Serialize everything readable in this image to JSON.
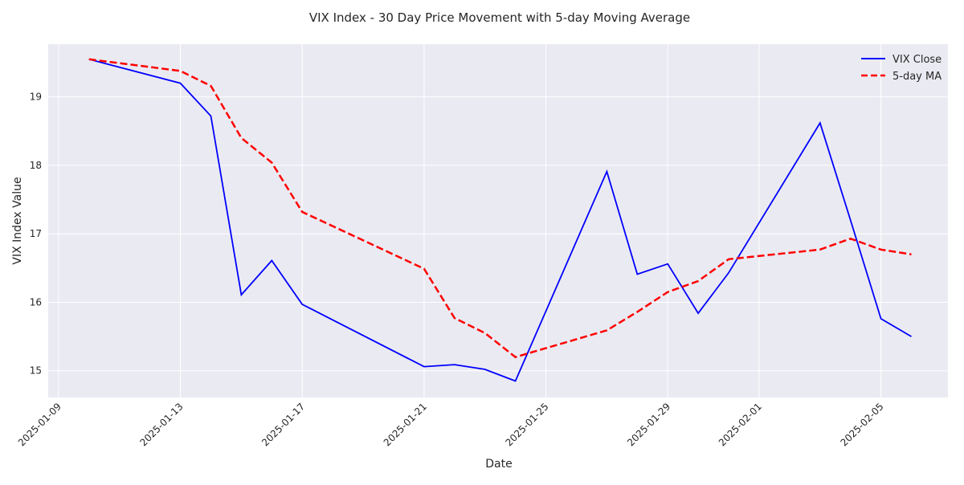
{
  "chart_data": {
    "type": "line",
    "title": "VIX Index - 30 Day Price Movement with 5-day Moving Average",
    "xlabel": "Date",
    "ylabel": "VIX Index Value",
    "x": [
      "2025-01-10",
      "2025-01-13",
      "2025-01-14",
      "2025-01-15",
      "2025-01-16",
      "2025-01-17",
      "2025-01-21",
      "2025-01-22",
      "2025-01-23",
      "2025-01-24",
      "2025-01-27",
      "2025-01-28",
      "2025-01-29",
      "2025-01-30",
      "2025-01-31",
      "2025-02-03",
      "2025-02-04",
      "2025-02-05",
      "2025-02-06"
    ],
    "series": [
      {
        "name": "VIX Close",
        "color": "#0000ff",
        "style": "solid",
        "values": [
          19.55,
          19.2,
          18.72,
          16.11,
          16.61,
          15.97,
          15.06,
          15.09,
          15.02,
          14.85,
          17.91,
          16.41,
          16.56,
          15.84,
          16.43,
          18.62,
          17.2,
          15.76,
          15.5
        ]
      },
      {
        "name": "5-day MA",
        "color": "#ff0000",
        "style": "dashed",
        "values": [
          19.55,
          19.38,
          19.16,
          18.4,
          18.04,
          17.32,
          16.49,
          15.77,
          15.55,
          15.2,
          15.59,
          15.86,
          16.15,
          16.31,
          16.63,
          16.77,
          16.93,
          16.77,
          16.7
        ]
      }
    ],
    "xticks": [
      "2025-01-09",
      "2025-01-13",
      "2025-01-17",
      "2025-01-21",
      "2025-01-25",
      "2025-01-29",
      "2025-02-01",
      "2025-02-05"
    ],
    "yticks": [
      15,
      16,
      17,
      18,
      19
    ],
    "ylim": [
      14.61,
      19.77
    ],
    "xlim": [
      "2025-01-08.66",
      "2025-02-07.2"
    ],
    "grid": true,
    "legend": "top-right",
    "background": "#eaeaf2"
  }
}
